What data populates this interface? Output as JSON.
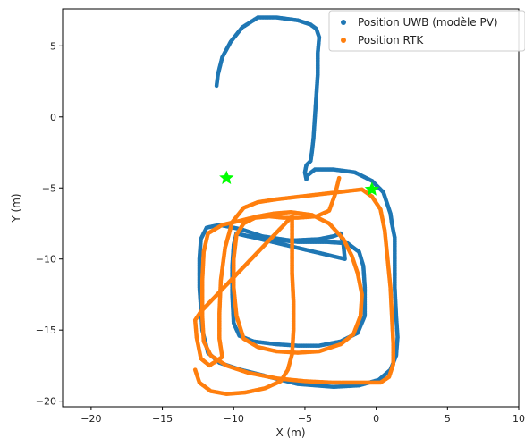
{
  "chart_data": {
    "type": "scatter",
    "xlabel": "X (m)",
    "ylabel": "Y (m)",
    "xlim": [
      -22,
      10
    ],
    "ylim": [
      -20.4,
      7.6
    ],
    "xticks": [
      -20,
      -15,
      -10,
      -5,
      0,
      5,
      10
    ],
    "yticks": [
      -20,
      -15,
      -10,
      -5,
      0,
      5
    ],
    "xtick_labels": [
      "−20",
      "−15",
      "−10",
      "−5",
      "0",
      "5",
      "10"
    ],
    "ytick_labels": [
      "−20",
      "−15",
      "−10",
      "−5",
      "0",
      "5"
    ],
    "legend_position": "top-right",
    "grid": false,
    "series": [
      {
        "name": "Position UWB (modèle PV)",
        "color": "#1f77b4",
        "points": [
          [
            -11.2,
            2.2
          ],
          [
            -11.1,
            3.0
          ],
          [
            -10.8,
            4.2
          ],
          [
            -10.2,
            5.3
          ],
          [
            -9.4,
            6.3
          ],
          [
            -8.3,
            7.0
          ],
          [
            -7.0,
            7.0
          ],
          [
            -5.5,
            6.8
          ],
          [
            -4.6,
            6.5
          ],
          [
            -4.2,
            6.2
          ],
          [
            -4.0,
            5.6
          ],
          [
            -4.1,
            4.5
          ],
          [
            -4.1,
            3.0
          ],
          [
            -4.2,
            1.5
          ],
          [
            -4.3,
            0.0
          ],
          [
            -4.4,
            -1.5
          ],
          [
            -4.5,
            -2.4
          ],
          [
            -4.6,
            -3.1
          ],
          [
            -4.9,
            -3.4
          ],
          [
            -5.0,
            -3.9
          ],
          [
            -4.9,
            -4.4
          ],
          [
            -4.8,
            -4.1
          ],
          [
            -4.3,
            -3.7
          ],
          [
            -3.0,
            -3.7
          ],
          [
            -1.5,
            -3.9
          ],
          [
            -0.3,
            -4.5
          ],
          [
            0.5,
            -5.3
          ],
          [
            0.8,
            -6.2
          ],
          [
            1.0,
            -6.8
          ],
          [
            1.1,
            -7.5
          ],
          [
            1.3,
            -8.5
          ],
          [
            1.3,
            -10.0
          ],
          [
            1.3,
            -12.0
          ],
          [
            1.4,
            -14.0
          ],
          [
            1.5,
            -15.5
          ],
          [
            1.4,
            -16.8
          ],
          [
            1.0,
            -17.8
          ],
          [
            0.2,
            -18.5
          ],
          [
            -1.2,
            -18.9
          ],
          [
            -3.0,
            -19.0
          ],
          [
            -5.5,
            -18.8
          ],
          [
            -7.5,
            -18.3
          ],
          [
            -9.5,
            -17.8
          ],
          [
            -11.0,
            -17.3
          ],
          [
            -11.8,
            -16.6
          ],
          [
            -12.2,
            -15.0
          ],
          [
            -12.4,
            -12.0
          ],
          [
            -12.4,
            -10.0
          ],
          [
            -12.3,
            -8.6
          ],
          [
            -11.9,
            -7.8
          ],
          [
            -11.0,
            -7.6
          ],
          [
            -9.5,
            -7.9
          ],
          [
            -8.0,
            -8.4
          ],
          [
            -6.0,
            -8.7
          ],
          [
            -4.0,
            -8.6
          ],
          [
            -3.0,
            -8.4
          ],
          [
            -2.5,
            -8.2
          ],
          [
            -2.3,
            -9.0
          ],
          [
            -2.2,
            -10.0
          ],
          [
            -9.8,
            -8.2
          ],
          [
            -10.0,
            -9.0
          ],
          [
            -10.1,
            -10.5
          ],
          [
            -10.1,
            -12.5
          ],
          [
            -10.0,
            -14.5
          ],
          [
            -9.6,
            -15.4
          ],
          [
            -8.6,
            -15.8
          ],
          [
            -7.0,
            -16.0
          ],
          [
            -5.5,
            -16.1
          ],
          [
            -4.0,
            -16.1
          ],
          [
            -2.5,
            -15.8
          ],
          [
            -1.3,
            -15.2
          ],
          [
            -0.8,
            -14.0
          ],
          [
            -0.8,
            -12.0
          ],
          [
            -0.9,
            -10.5
          ],
          [
            -1.2,
            -9.5
          ],
          [
            -2.0,
            -8.9
          ],
          [
            -3.5,
            -8.8
          ],
          [
            -5.5,
            -8.8
          ],
          [
            -7.5,
            -8.6
          ],
          [
            -9.0,
            -8.4
          ],
          [
            -9.8,
            -8.2
          ]
        ]
      },
      {
        "name": "Position RTK",
        "color": "#ff7f0e",
        "points": [
          [
            -2.6,
            -4.3
          ],
          [
            -2.9,
            -5.5
          ],
          [
            -3.3,
            -6.6
          ],
          [
            -4.2,
            -7.0
          ],
          [
            -5.5,
            -7.1
          ],
          [
            -6.5,
            -7.1
          ],
          [
            -7.5,
            -7.0
          ],
          [
            -8.5,
            -7.1
          ],
          [
            -9.3,
            -7.5
          ],
          [
            -9.8,
            -8.3
          ],
          [
            -10.0,
            -10.0
          ],
          [
            -10.0,
            -12.0
          ],
          [
            -9.8,
            -14.0
          ],
          [
            -9.3,
            -15.6
          ],
          [
            -8.3,
            -16.2
          ],
          [
            -7.0,
            -16.5
          ],
          [
            -5.5,
            -16.6
          ],
          [
            -4.0,
            -16.5
          ],
          [
            -2.5,
            -16.0
          ],
          [
            -1.6,
            -15.3
          ],
          [
            -1.1,
            -14.0
          ],
          [
            -1.0,
            -12.5
          ],
          [
            -1.3,
            -11.0
          ],
          [
            -1.7,
            -9.8
          ],
          [
            -2.3,
            -8.6
          ],
          [
            -3.3,
            -7.5
          ],
          [
            -4.5,
            -6.9
          ],
          [
            -6.0,
            -6.7
          ],
          [
            -7.2,
            -6.8
          ],
          [
            -8.3,
            -7.0
          ],
          [
            -9.5,
            -7.3
          ],
          [
            -10.8,
            -7.6
          ],
          [
            -11.8,
            -8.2
          ],
          [
            -12.1,
            -9.5
          ],
          [
            -12.2,
            -11.5
          ],
          [
            -12.2,
            -14.0
          ],
          [
            -12.1,
            -15.8
          ],
          [
            -11.6,
            -16.8
          ],
          [
            -10.5,
            -17.5
          ],
          [
            -9.0,
            -18.0
          ],
          [
            -7.0,
            -18.4
          ],
          [
            -5.0,
            -18.6
          ],
          [
            -3.0,
            -18.7
          ],
          [
            -1.0,
            -18.7
          ],
          [
            0.3,
            -18.7
          ],
          [
            0.9,
            -18.3
          ],
          [
            1.2,
            -17.4
          ],
          [
            1.2,
            -16.0
          ],
          [
            1.1,
            -14.0
          ],
          [
            1.0,
            -12.0
          ],
          [
            0.8,
            -10.0
          ],
          [
            0.6,
            -8.0
          ],
          [
            0.3,
            -6.5
          ],
          [
            -0.3,
            -5.6
          ],
          [
            -1.0,
            -5.1
          ],
          [
            -7.0,
            -5.8
          ],
          [
            -8.3,
            -6.0
          ],
          [
            -9.3,
            -6.4
          ],
          [
            -10.1,
            -7.4
          ],
          [
            -10.6,
            -9.2
          ],
          [
            -10.9,
            -11.5
          ],
          [
            -11.0,
            -13.8
          ],
          [
            -11.0,
            -15.6
          ],
          [
            -10.8,
            -16.9
          ],
          [
            -11.7,
            -17.5
          ],
          [
            -12.3,
            -17.0
          ],
          [
            -12.6,
            -15.5
          ],
          [
            -12.7,
            -14.3
          ],
          [
            -12.3,
            -13.7
          ],
          [
            -5.9,
            -7.0
          ],
          [
            -5.9,
            -9.0
          ],
          [
            -5.9,
            -11.0
          ],
          [
            -5.8,
            -13.0
          ],
          [
            -5.8,
            -15.0
          ],
          [
            -5.9,
            -16.7
          ],
          [
            -6.2,
            -17.8
          ],
          [
            -6.7,
            -18.6
          ],
          [
            -7.8,
            -19.1
          ],
          [
            -9.2,
            -19.4
          ],
          [
            -10.5,
            -19.5
          ],
          [
            -11.6,
            -19.3
          ],
          [
            -12.4,
            -18.7
          ],
          [
            -12.7,
            -17.8
          ]
        ]
      },
      {
        "name": "",
        "color": "#00ff00",
        "marker": "star",
        "points": [
          [
            -10.5,
            -4.3
          ],
          [
            -0.3,
            -5.1
          ]
        ]
      }
    ]
  }
}
